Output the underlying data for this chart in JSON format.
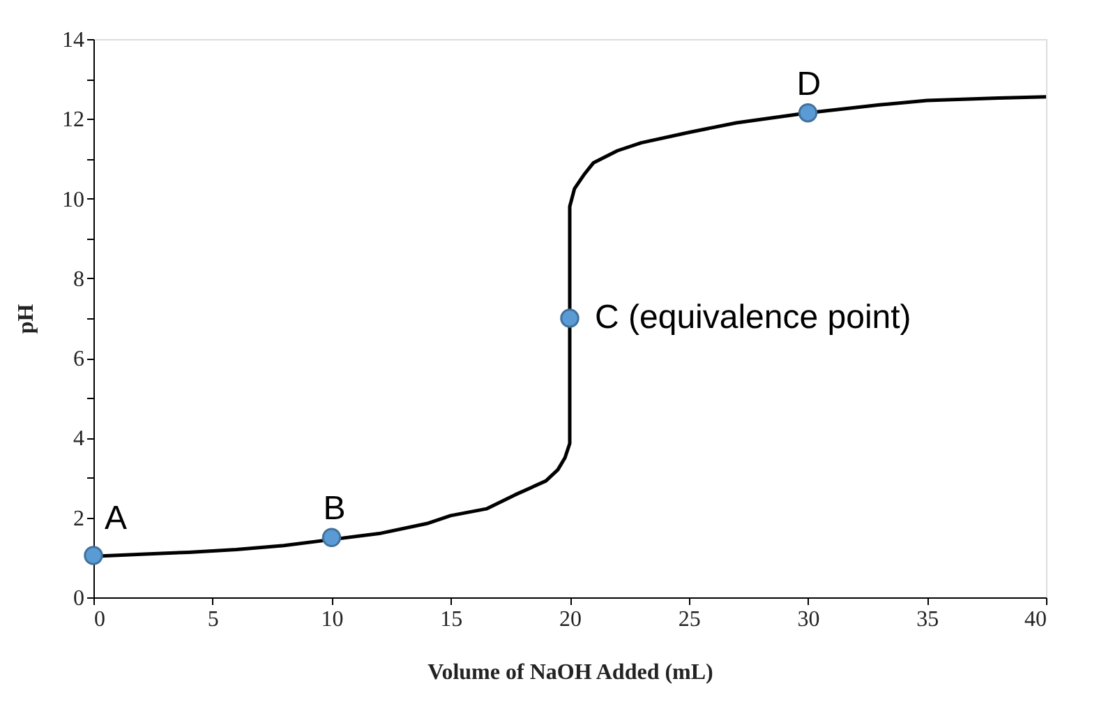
{
  "chart_data": {
    "type": "line",
    "xlabel": "Volume of NaOH Added (mL)",
    "ylabel": "pH",
    "xlim": [
      0,
      40
    ],
    "xticks": [
      0,
      5,
      10,
      15,
      20,
      25,
      30,
      35,
      40
    ],
    "ylim": [
      0,
      14
    ],
    "yticks": [
      0,
      {
        "value": 1,
        "label": null
      },
      2,
      {
        "value": 3,
        "label": null
      },
      4,
      {
        "value": 5,
        "label": null
      },
      6,
      {
        "value": 7,
        "label": null
      },
      8,
      {
        "value": 9,
        "label": null
      },
      10,
      {
        "value": 11,
        "label": null
      },
      12,
      {
        "value": 13,
        "label": null
      },
      14
    ],
    "grid": false,
    "series": [
      {
        "color": "#000000",
        "marker": "none",
        "line_style": "solid",
        "x": [
          0,
          2,
          4,
          6,
          8,
          10,
          12,
          14,
          15,
          16.5,
          17.7,
          19,
          19.5,
          19.8,
          20,
          20,
          20.2,
          20.6,
          21,
          22,
          23,
          25,
          27,
          30,
          33,
          35,
          38,
          40
        ],
        "values": [
          1.03,
          1.08,
          1.13,
          1.2,
          1.3,
          1.45,
          1.6,
          1.85,
          2.05,
          2.22,
          2.57,
          2.92,
          3.2,
          3.5,
          3.86,
          9.8,
          10.25,
          10.6,
          10.9,
          11.2,
          11.4,
          11.66,
          11.9,
          12.15,
          12.35,
          12.46,
          12.52,
          12.55
        ]
      },
      {
        "type": "scatter",
        "color": "#5b9bd5",
        "marker": "circle",
        "x": [
          0,
          10,
          20,
          30
        ],
        "values": [
          1.05,
          1.5,
          7.0,
          12.15
        ]
      }
    ],
    "annotations": [
      {
        "text": "A",
        "x": 0,
        "y": 1.05
      },
      {
        "text": "B",
        "x": 10,
        "y": 1.5
      },
      {
        "text": "C (equivalence point)",
        "x": 20,
        "y": 7.0
      },
      {
        "text": "D",
        "x": 30,
        "y": 12.15
      }
    ]
  }
}
